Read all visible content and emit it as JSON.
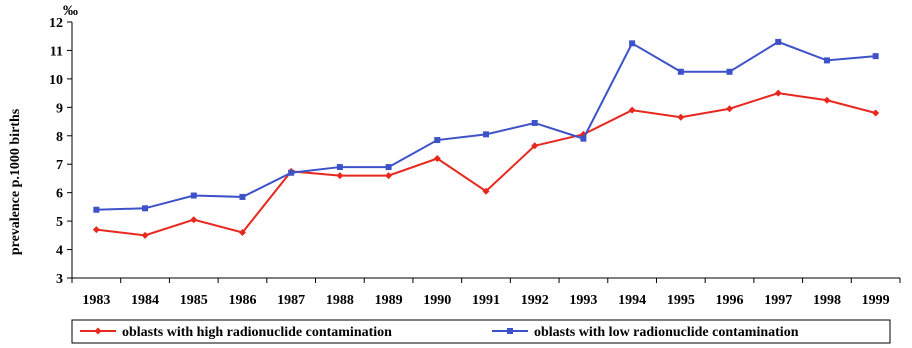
{
  "chart_data": {
    "type": "line",
    "title": "",
    "unit_label": "‰",
    "ylabel": "prevalence p.1000 births",
    "xlabel": "",
    "ylim": [
      3,
      12
    ],
    "yticks": [
      3,
      4,
      5,
      6,
      7,
      8,
      9,
      10,
      11,
      12
    ],
    "grid": false,
    "legend_position": "bottom",
    "categories": [
      "1983",
      "1984",
      "1985",
      "1986",
      "1987",
      "1988",
      "1989",
      "1990",
      "1991",
      "1992",
      "1993",
      "1994",
      "1995",
      "1996",
      "1997",
      "1998",
      "1999"
    ],
    "series": [
      {
        "name": "oblasts with high radionuclide contamination",
        "color": "#e8281e",
        "marker": "diamond",
        "values": [
          4.7,
          4.5,
          5.05,
          4.6,
          6.75,
          6.6,
          6.6,
          7.2,
          6.05,
          7.65,
          8.05,
          8.9,
          8.65,
          8.95,
          9.5,
          9.25,
          8.8
        ]
      },
      {
        "name": "oblasts with low radionuclide contamination",
        "color": "#3d52c9",
        "marker": "square",
        "values": [
          5.4,
          5.45,
          5.9,
          5.85,
          6.7,
          6.9,
          6.9,
          7.85,
          8.05,
          8.45,
          7.9,
          11.25,
          10.25,
          10.25,
          11.3,
          10.65,
          10.8
        ]
      }
    ]
  }
}
